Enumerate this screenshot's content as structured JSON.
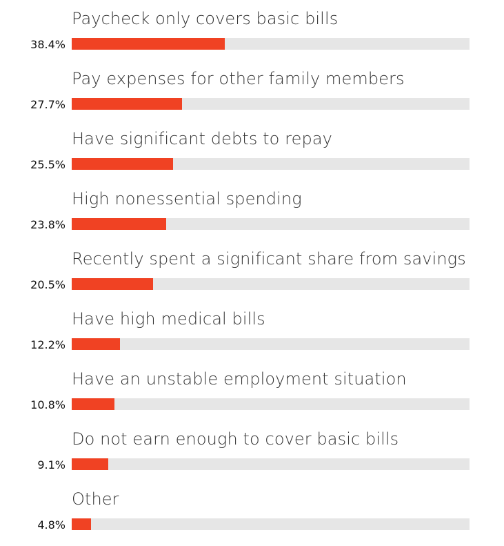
{
  "chart_data": {
    "type": "bar",
    "orientation": "horizontal",
    "categories": [
      "Paycheck only covers basic bills",
      "Pay expenses for other family members",
      "Have significant debts to repay",
      "High nonessential spending",
      "Recently spent a significant share from savings",
      "Have high medical bills",
      "Have an unstable employment situation",
      "Do not earn enough to cover basic bills",
      "Other"
    ],
    "values": [
      38.4,
      27.7,
      25.5,
      23.8,
      20.5,
      12.2,
      10.8,
      9.1,
      4.8
    ],
    "value_labels": [
      "38.4%",
      "27.7%",
      "25.5%",
      "23.8%",
      "20.5%",
      "12.2%",
      "10.8%",
      "9.1%",
      "4.8%"
    ],
    "xlim": [
      0,
      100
    ],
    "grid": false,
    "legend": "none"
  },
  "colors": {
    "bar": "#f04223",
    "track": "#e6e6e6",
    "label_text": "#333333",
    "value_text": "#111111"
  }
}
